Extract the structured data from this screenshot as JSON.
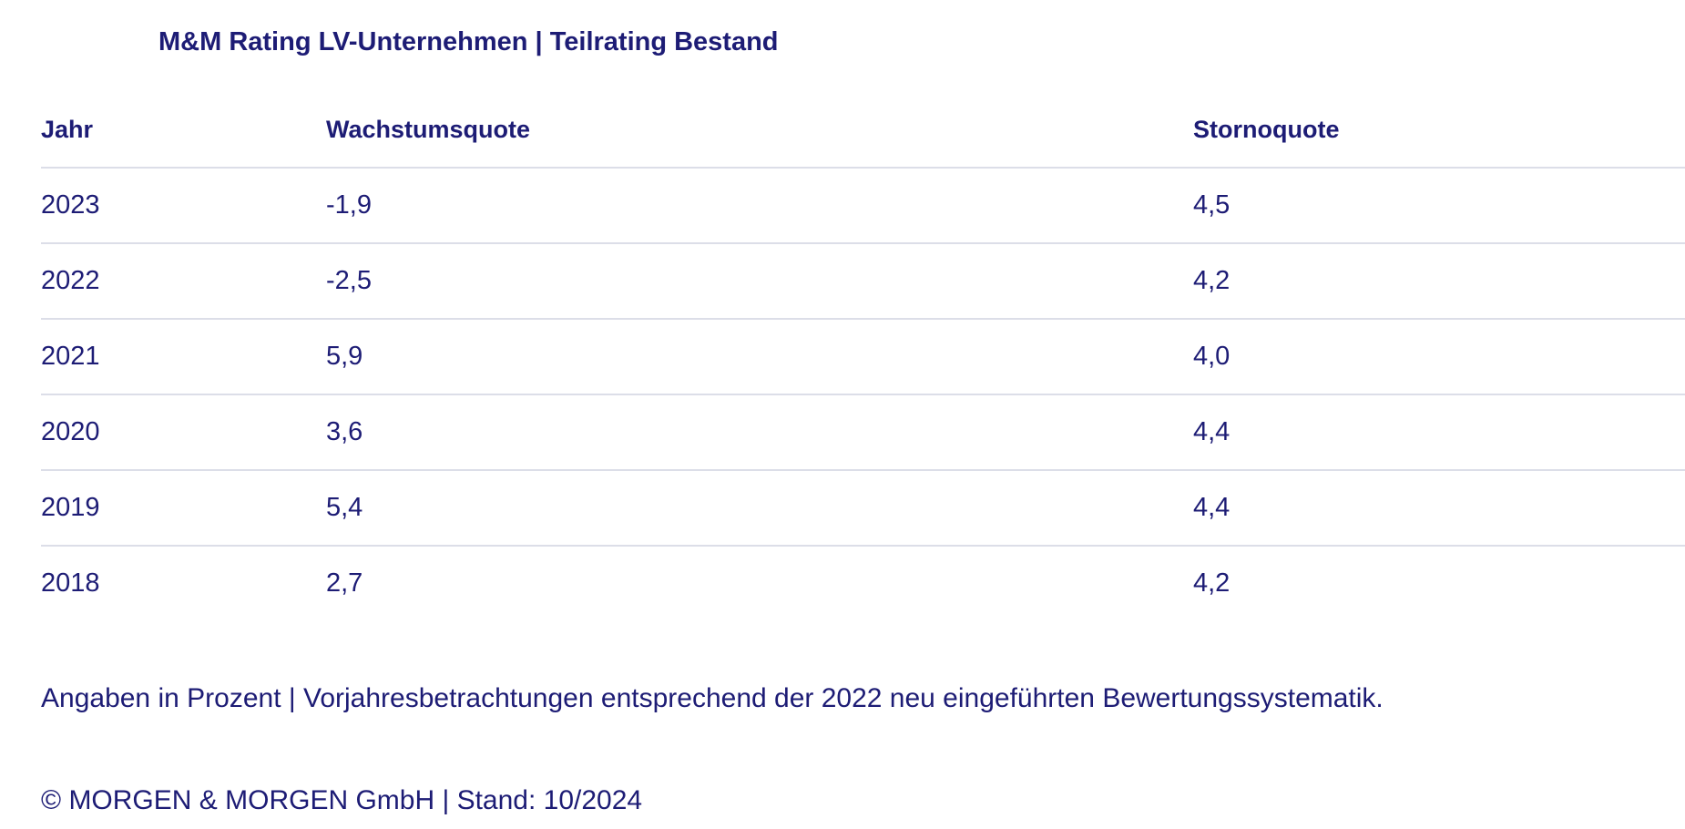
{
  "page": {
    "title": "M&M Rating LV-Unternehmen | Teilrating Bestand",
    "footnote": "Angaben in Prozent | Vorjahresbetrachtungen entsprechend der 2022 neu eingeführten Bewertungssystematik.",
    "copyright": "© MORGEN & MORGEN GmbH | Stand: 10/2024"
  },
  "colors": {
    "text": "#1d1c75",
    "divider": "#dcdee8",
    "background": "#ffffff"
  },
  "chart_data": {
    "type": "table",
    "title": "M&M Rating LV-Unternehmen | Teilrating Bestand",
    "columns": [
      "Jahr",
      "Wachstumsquote",
      "Stornoquote"
    ],
    "rows": [
      [
        "2023",
        "-1,9",
        "4,5"
      ],
      [
        "2022",
        "-2,5",
        "4,2"
      ],
      [
        "2021",
        "5,9",
        "4,0"
      ],
      [
        "2020",
        "3,6",
        "4,4"
      ],
      [
        "2019",
        "5,4",
        "4,4"
      ],
      [
        "2018",
        "2,7",
        "4,2"
      ]
    ],
    "unit": "Prozent",
    "source": "© MORGEN & MORGEN GmbH | Stand: 10/2024"
  }
}
